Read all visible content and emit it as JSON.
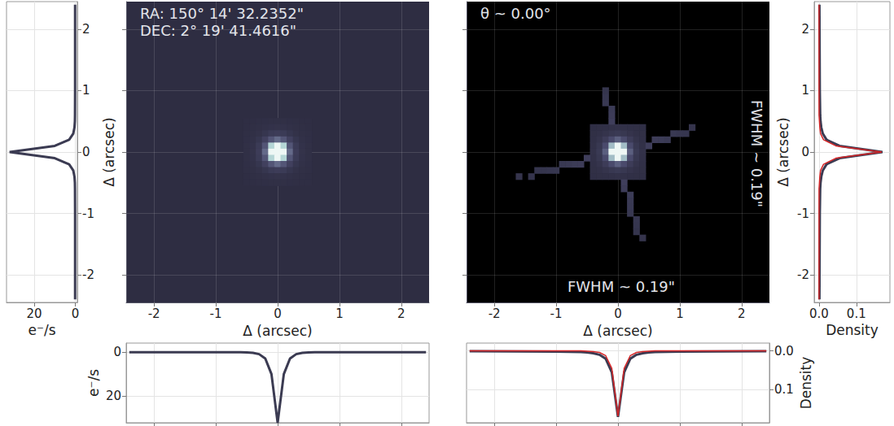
{
  "chart_data": [
    {
      "type": "line",
      "orientation": "horizontal",
      "x_label": "e⁻/s",
      "y": [
        -2.4,
        -1.0,
        -0.6,
        -0.5,
        -0.4,
        -0.3,
        -0.2,
        -0.1,
        0,
        0.1,
        0.2,
        0.3,
        0.4,
        0.5,
        0.6,
        1.0,
        2.4
      ],
      "series": [
        {
          "color": "#3b3b52",
          "values": [
            0.1,
            0.1,
            0.15,
            0.2,
            0.4,
            1,
            3,
            10,
            32,
            10,
            3,
            1,
            0.4,
            0.2,
            0.15,
            0.1,
            0.1
          ]
        }
      ],
      "xlim": [
        33.5,
        -1
      ],
      "xticks": [
        0,
        20
      ],
      "ylim": [
        -2.45,
        2.45
      ],
      "yticks": [
        -2,
        -1,
        0,
        1,
        2
      ],
      "grid": true
    },
    {
      "type": "heatmap",
      "x_label": "Δ (arcsec)",
      "y_label": "Δ (arcsec)",
      "annotations": [
        "RA: 150° 14' 32.2352\"",
        "DEC: 2° 19' 41.4616\""
      ],
      "xlim": [
        -2.45,
        2.45
      ],
      "xticks": [
        -2,
        -1,
        0,
        1,
        2
      ],
      "ylim": [
        -2.45,
        2.45
      ],
      "yticks": [
        -2,
        -1,
        0,
        1,
        2
      ],
      "tick_labels": "x",
      "grid": true,
      "cell_size": 0.1,
      "zlim": [
        0,
        12
      ],
      "cell_x": [
        -0.5,
        -0.4,
        -0.3,
        -0.2,
        -0.1,
        0,
        0.1,
        0.2,
        0.3,
        0.4,
        0.5
      ],
      "cell_y": [
        0.5,
        0.4,
        0.3,
        0.2,
        0.1,
        0,
        -0.1,
        -0.2,
        -0.3,
        -0.4,
        -0.5
      ],
      "cells": [
        [
          0.15,
          0.15,
          0.18,
          0.25,
          0.28,
          0.3,
          0.28,
          0.25,
          0.18,
          0.15,
          0.15
        ],
        [
          0.15,
          0.2,
          0.3,
          0.4,
          0.55,
          0.6,
          0.55,
          0.4,
          0.3,
          0.2,
          0.15
        ],
        [
          0.18,
          0.3,
          0.5,
          0.9,
          1.4,
          1.6,
          1.4,
          0.9,
          0.5,
          0.3,
          0.18
        ],
        [
          0.25,
          0.4,
          0.9,
          2,
          3.5,
          4.5,
          3.5,
          2,
          0.9,
          0.4,
          0.25
        ],
        [
          0.28,
          0.55,
          1.4,
          3.5,
          9,
          14,
          9,
          3.5,
          1.4,
          0.55,
          0.28
        ],
        [
          0.3,
          0.6,
          1.6,
          4.5,
          14,
          32,
          14,
          4.5,
          1.6,
          0.6,
          0.3
        ],
        [
          0.28,
          0.55,
          1.4,
          3.5,
          9,
          14,
          9,
          3.5,
          1.4,
          0.55,
          0.28
        ],
        [
          0.25,
          0.4,
          0.9,
          2,
          3.5,
          4.5,
          3.5,
          2,
          0.9,
          0.4,
          0.25
        ],
        [
          0.18,
          0.3,
          0.5,
          0.9,
          1.4,
          1.6,
          1.4,
          0.9,
          0.5,
          0.3,
          0.18
        ],
        [
          0.15,
          0.2,
          0.3,
          0.4,
          0.55,
          0.6,
          0.55,
          0.4,
          0.3,
          0.2,
          0.15
        ],
        [
          0.15,
          0.15,
          0.18,
          0.25,
          0.28,
          0.3,
          0.28,
          0.25,
          0.18,
          0.15,
          0.15
        ]
      ]
    },
    {
      "type": "line",
      "y_label": "e⁻/s",
      "x": [
        -2.4,
        -1.0,
        -0.6,
        -0.5,
        -0.4,
        -0.3,
        -0.2,
        -0.1,
        0,
        0.1,
        0.2,
        0.3,
        0.4,
        0.5,
        0.6,
        1.0,
        2.4
      ],
      "series": [
        {
          "color": "#3b3b52",
          "values": [
            0.1,
            0.1,
            0.15,
            0.2,
            0.4,
            1,
            3,
            10,
            32,
            10,
            3,
            1,
            0.4,
            0.2,
            0.15,
            0.1,
            0.1
          ]
        }
      ],
      "xlim": [
        -2.45,
        2.45
      ],
      "xticks": [
        -2,
        -1,
        0,
        1,
        2
      ],
      "ylim": [
        32,
        -4
      ],
      "yticks": [
        0,
        20
      ],
      "tick_labels": "y",
      "grid": true
    },
    {
      "type": "heatmap",
      "x_label": "Δ (arcsec)",
      "annotations": [
        "θ ~ 0.00°"
      ],
      "fwhm_x": "FWHM ~ 0.19\"",
      "fwhm_y": "FWHM ~ 0.19\"",
      "xlim": [
        -2.45,
        2.45
      ],
      "xticks": [
        -2,
        -1,
        0,
        1,
        2
      ],
      "ylim": [
        -2.45,
        2.45
      ],
      "yticks": [
        -2,
        -1,
        0,
        1,
        2
      ],
      "tick_labels": "x",
      "grid": true,
      "cell_size": 0.1,
      "zlim": [
        0,
        12
      ],
      "cell_x": [
        -0.4,
        -0.3,
        -0.2,
        -0.1,
        0,
        0.1,
        0.2,
        0.3,
        0.4
      ],
      "cell_y": [
        0.4,
        0.3,
        0.2,
        0.1,
        0,
        -0.1,
        -0.2,
        -0.3,
        -0.4
      ],
      "cells": [
        [
          0.25,
          0.3,
          0.35,
          0.45,
          0.5,
          0.45,
          0.35,
          0.3,
          0.25
        ],
        [
          0.3,
          0.4,
          0.7,
          1.1,
          1.3,
          1.1,
          0.7,
          0.4,
          0.3
        ],
        [
          0.35,
          0.7,
          1.6,
          3,
          4,
          3,
          1.6,
          0.7,
          0.35
        ],
        [
          0.45,
          1.1,
          3,
          8,
          13,
          8,
          3,
          1.1,
          0.45
        ],
        [
          0.5,
          1.3,
          4,
          13,
          30,
          13,
          4,
          1.3,
          0.5
        ],
        [
          0.45,
          1.1,
          3,
          8,
          13,
          8,
          3,
          1.1,
          0.45
        ],
        [
          0.35,
          0.7,
          1.6,
          3,
          4,
          3,
          1.6,
          0.7,
          0.35
        ],
        [
          0.3,
          0.4,
          0.7,
          1.1,
          1.3,
          1.1,
          0.7,
          0.4,
          0.3
        ],
        [
          0.25,
          0.3,
          0.35,
          0.45,
          0.5,
          0.45,
          0.35,
          0.3,
          0.25
        ]
      ],
      "spikes": [
        [
          -0.1,
          0.5,
          1.8
        ],
        [
          -0.1,
          0.6,
          1.6
        ],
        [
          -0.1,
          0.7,
          1.4
        ],
        [
          -0.2,
          0.8,
          1.2
        ],
        [
          -0.2,
          0.9,
          1.0
        ],
        [
          -0.2,
          1.0,
          0.8
        ],
        [
          0.5,
          0.1,
          1.8
        ],
        [
          0.6,
          0.2,
          1.6
        ],
        [
          0.7,
          0.2,
          1.5
        ],
        [
          0.8,
          0.2,
          1.3
        ],
        [
          0.9,
          0.3,
          1.2
        ],
        [
          1.0,
          0.3,
          1.0
        ],
        [
          1.1,
          0.3,
          0.9
        ],
        [
          1.2,
          0.4,
          0.7
        ],
        [
          0.1,
          -0.5,
          1.8
        ],
        [
          0.1,
          -0.6,
          1.6
        ],
        [
          0.2,
          -0.7,
          1.5
        ],
        [
          0.2,
          -0.8,
          1.3
        ],
        [
          0.2,
          -0.9,
          1.2
        ],
        [
          0.2,
          -1.0,
          1.1
        ],
        [
          0.3,
          -1.1,
          1.0
        ],
        [
          0.3,
          -1.2,
          0.9
        ],
        [
          0.3,
          -1.3,
          0.8
        ],
        [
          0.4,
          -1.4,
          0.7
        ],
        [
          -0.5,
          -0.1,
          1.8
        ],
        [
          -0.6,
          -0.2,
          1.6
        ],
        [
          -0.7,
          -0.2,
          1.5
        ],
        [
          -0.8,
          -0.2,
          1.3
        ],
        [
          -0.9,
          -0.2,
          1.2
        ],
        [
          -1.0,
          -0.3,
          1.0
        ],
        [
          -1.1,
          -0.3,
          0.9
        ],
        [
          -1.2,
          -0.3,
          0.8
        ],
        [
          -1.3,
          -0.3,
          0.8
        ],
        [
          -1.4,
          -0.4,
          0.7
        ],
        [
          -1.6,
          -0.4,
          0.7
        ]
      ]
    },
    {
      "type": "line",
      "orientation": "horizontal",
      "x_label": "Density",
      "y_label": "Δ (arcsec)",
      "y": [
        -2.4,
        -1.0,
        -0.6,
        -0.5,
        -0.4,
        -0.3,
        -0.2,
        -0.1,
        0,
        0.1,
        0.2,
        0.3,
        0.4,
        0.5,
        0.6,
        1.0,
        2.4
      ],
      "series": [
        {
          "color": "#3b3b52",
          "values": [
            0.001,
            0.002,
            0.003,
            0.004,
            0.006,
            0.01,
            0.02,
            0.055,
            0.17,
            0.055,
            0.02,
            0.01,
            0.006,
            0.004,
            0.003,
            0.002,
            0.001
          ]
        },
        {
          "color": "#d62728",
          "values": [
            0,
            0,
            0,
            0.001,
            0.002,
            0.004,
            0.012,
            0.045,
            0.168,
            0.045,
            0.012,
            0.004,
            0.002,
            0.001,
            0,
            0,
            0
          ]
        }
      ],
      "xlim": [
        -0.013,
        0.19
      ],
      "xticks": [
        {
          "value": 0,
          "label": "0.0"
        },
        {
          "value": 0.1,
          "label": "0.1"
        }
      ],
      "ylim": [
        -2.45,
        2.45
      ],
      "yticks": [
        -2,
        -1,
        0,
        1,
        2
      ],
      "grid": true
    },
    {
      "type": "line",
      "y_label": "Density",
      "x": [
        -2.4,
        -1.0,
        -0.6,
        -0.5,
        -0.4,
        -0.3,
        -0.2,
        -0.1,
        0,
        0.1,
        0.2,
        0.3,
        0.4,
        0.5,
        0.6,
        1.0,
        2.4
      ],
      "series": [
        {
          "color": "#3b3b52",
          "values": [
            0.001,
            0.002,
            0.003,
            0.004,
            0.006,
            0.01,
            0.02,
            0.055,
            0.17,
            0.055,
            0.02,
            0.01,
            0.006,
            0.004,
            0.003,
            0.002,
            0.001
          ]
        },
        {
          "color": "#d62728",
          "values": [
            0,
            0,
            0,
            0.001,
            0.002,
            0.004,
            0.012,
            0.045,
            0.168,
            0.045,
            0.012,
            0.004,
            0.002,
            0.001,
            0,
            0,
            0
          ]
        }
      ],
      "xlim": [
        -2.45,
        2.45
      ],
      "xticks": [
        -2,
        -1,
        0,
        1,
        2
      ],
      "ylim": [
        0.185,
        -0.02
      ],
      "yticks": [
        {
          "value": 0,
          "label": "0.0"
        },
        {
          "value": 0.1,
          "label": "0.1"
        }
      ],
      "tick_labels": "y",
      "grid": true
    }
  ]
}
